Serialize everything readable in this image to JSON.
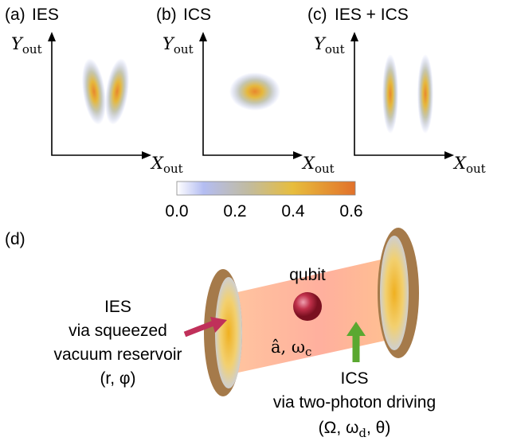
{
  "panels": [
    {
      "label": "(a)",
      "title": "IES",
      "y_axis": {
        "symbol": "Y",
        "subscript": "out"
      },
      "x_axis": {
        "symbol": "X",
        "subscript": "out"
      }
    },
    {
      "label": "(b)",
      "title": "ICS",
      "y_axis": {
        "symbol": "Y",
        "subscript": "out"
      },
      "x_axis": {
        "symbol": "X",
        "subscript": "out"
      }
    },
    {
      "label": "(c)",
      "title": "IES + ICS",
      "y_axis": {
        "symbol": "Y",
        "subscript": "out"
      },
      "x_axis": {
        "symbol": "X",
        "subscript": "out"
      }
    }
  ],
  "colorbar": {
    "ticks": [
      "0.0",
      "0.2",
      "0.4",
      "0.6"
    ]
  },
  "diagram": {
    "label": "(d)",
    "qubit": "qubit",
    "mode": "â, ω",
    "mode_sub": "c",
    "ies": [
      "IES",
      "via squeezed",
      "vacuum reservoir",
      "(r, φ)"
    ],
    "ics": [
      "ICS",
      "via two-photon driving"
    ],
    "ics_params": [
      "(Ω, ω",
      "d",
      ", θ)"
    ]
  }
}
